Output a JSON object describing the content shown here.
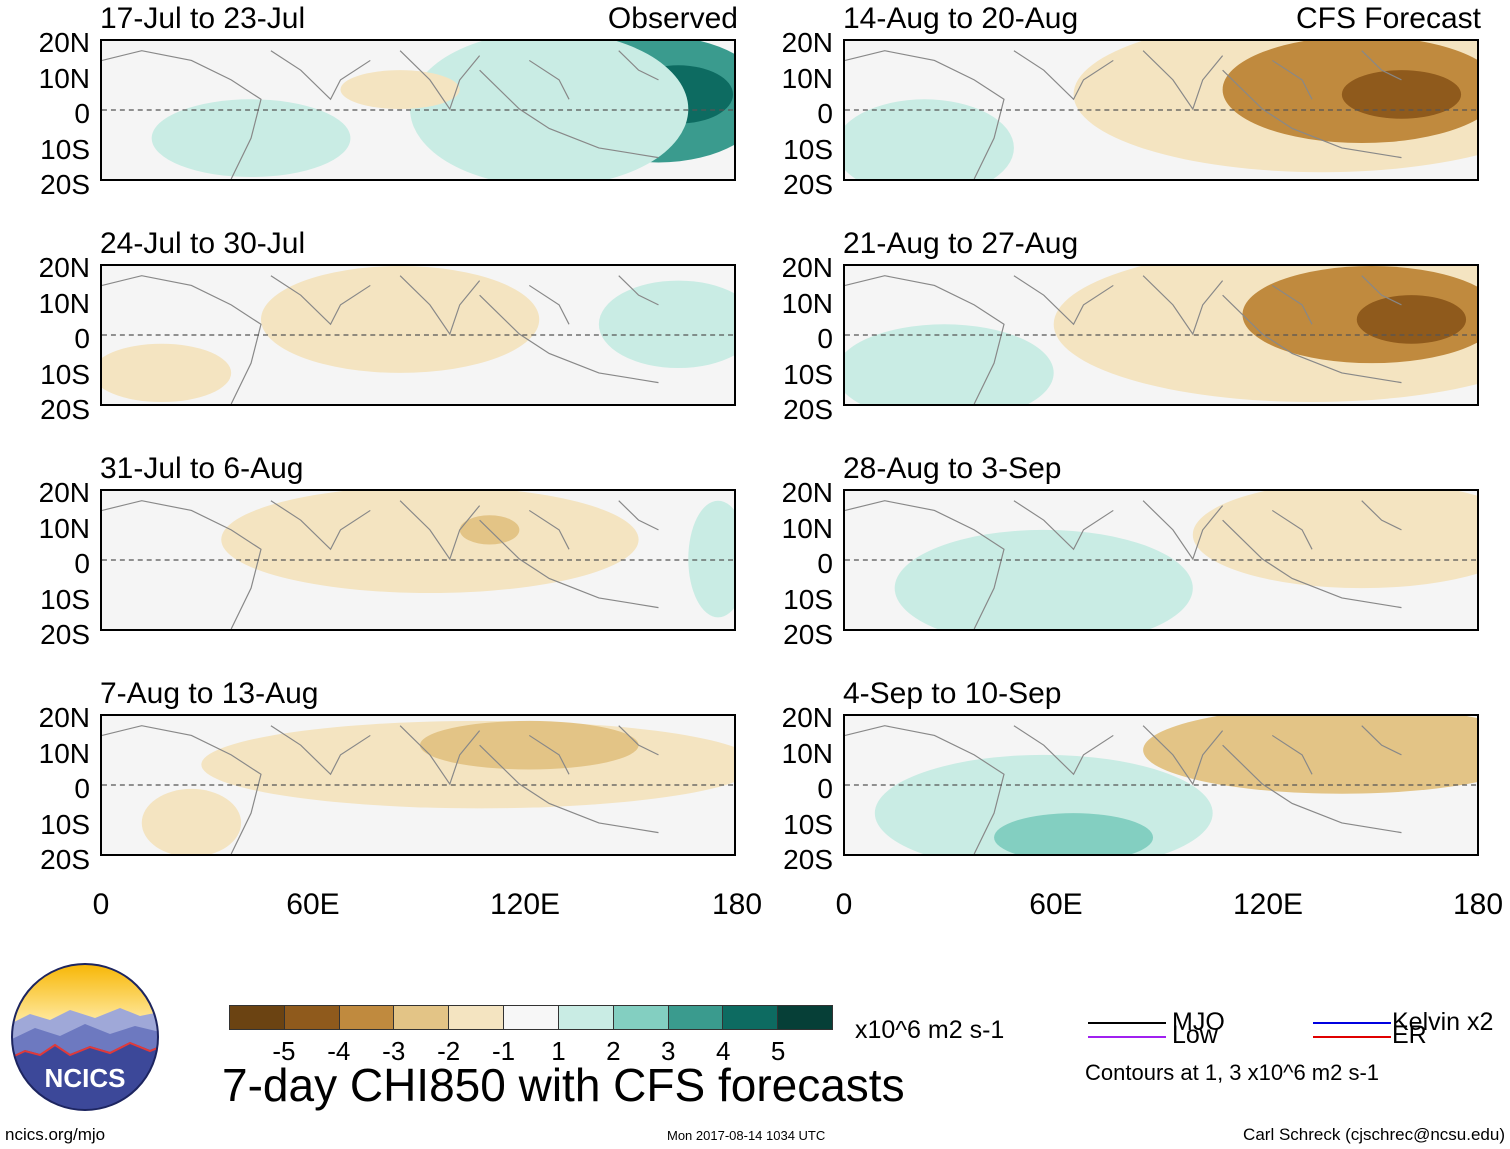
{
  "panels": {
    "observed": [
      {
        "title": "17-Jul to 23-Jul",
        "tag": "Observed"
      },
      {
        "title": "24-Jul to 30-Jul",
        "tag": ""
      },
      {
        "title": "31-Jul to 6-Aug",
        "tag": ""
      },
      {
        "title": "7-Aug to 13-Aug",
        "tag": ""
      }
    ],
    "forecast": [
      {
        "title": "14-Aug to 20-Aug",
        "tag": "CFS Forecast"
      },
      {
        "title": "21-Aug to 27-Aug",
        "tag": ""
      },
      {
        "title": "28-Aug to 3-Sep",
        "tag": ""
      },
      {
        "title": "4-Sep to 10-Sep",
        "tag": ""
      }
    ]
  },
  "axes": {
    "lat_labels": [
      "20N",
      "10N",
      "0",
      "10S",
      "20S"
    ],
    "lon_labels": [
      "0",
      "60E",
      "120E",
      "180"
    ]
  },
  "colorbar": {
    "ticks": [
      "-5",
      "-4",
      "-3",
      "-2",
      "-1",
      "1",
      "2",
      "3",
      "4",
      "5"
    ],
    "colors": [
      "#6b4312",
      "#8f5a1c",
      "#c08a3e",
      "#e3c486",
      "#f4e4c1",
      "#f7f7f7",
      "#c9ece4",
      "#83cfc1",
      "#3a9b8e",
      "#0d6b61",
      "#063f37"
    ],
    "units": "x10^6 m2 s-1"
  },
  "legend": {
    "mjo": {
      "label": "MJO",
      "color": "#000000"
    },
    "kelvin": {
      "label": "Kelvin x2",
      "color": "#0000e0"
    },
    "low": {
      "label": "Low",
      "color": "#a020f0"
    },
    "er": {
      "label": "ER",
      "color": "#e00000"
    },
    "note": "Contours at 1, 3 x10^6 m2 s-1"
  },
  "main_title": "7-day CHI850 with CFS forecasts",
  "logo_text": "NCICS",
  "footer": {
    "left": "ncics.org/mjo",
    "center": "Mon 2017-08-14 1034 UTC",
    "right": "Carl Schreck (cjschrec@ncsu.edu)"
  }
}
